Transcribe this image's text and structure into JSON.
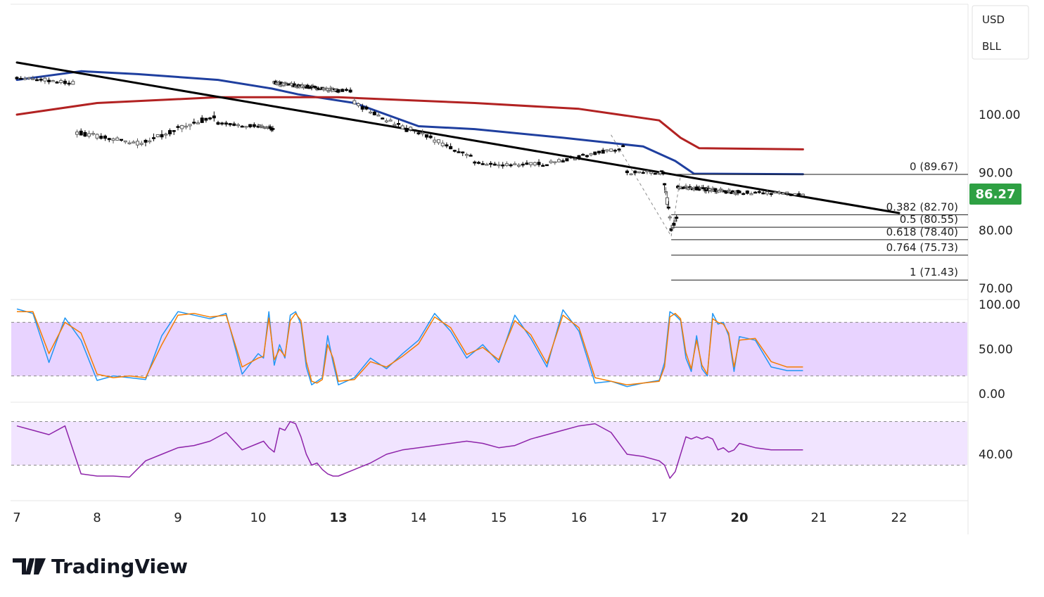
{
  "platform": {
    "brand": "TradingView"
  },
  "currency_box": {
    "line1": "USD",
    "line2": "BLL"
  },
  "chart_data": [
    {
      "type": "candlestick",
      "title": "",
      "xlabel": "",
      "ylabel": "",
      "x_ticks": [
        "7",
        "8",
        "9",
        "10",
        "13",
        "14",
        "15",
        "16",
        "17",
        "20",
        "21",
        "22"
      ],
      "x_ticks_bold": [
        "13",
        "20"
      ],
      "y_ticks": [
        "100.00",
        "90.00",
        "80.00",
        "70.00"
      ],
      "ylim": [
        70,
        110
      ],
      "last_price": {
        "label": "86.27",
        "value": 86.27,
        "color": "#2ea043"
      },
      "grid": false,
      "candles": {
        "bull_color": "#5a5a5a",
        "bear_color": "#000000",
        "x_range": [
          7.0,
          20.8
        ],
        "segments": [
          {
            "from": 7.0,
            "to": 7.7,
            "open": 106.5,
            "close": 105.5,
            "low": 103.0,
            "high": 108.5
          },
          {
            "from": 7.7,
            "to": 7.72,
            "open": 104.0,
            "close": 99.0,
            "low": 91.5,
            "high": 104.5
          },
          {
            "from": 7.72,
            "to": 8.5,
            "open": 97.0,
            "close": 95.0,
            "low": 92.5,
            "high": 99.0
          },
          {
            "from": 8.5,
            "to": 9.5,
            "open": 95.0,
            "close": 100.0,
            "low": 94.0,
            "high": 102.0
          },
          {
            "from": 9.5,
            "to": 10.6,
            "open": 98.5,
            "close": 97.5,
            "low": 96.0,
            "high": 101.0
          },
          {
            "from": 10.6,
            "to": 13.2,
            "open": 105.5,
            "close": 104.0,
            "low": 101.5,
            "high": 106.5
          },
          {
            "from": 13.2,
            "to": 13.9,
            "open": 102.0,
            "close": 97.0,
            "low": 96.0,
            "high": 103.0
          },
          {
            "from": 13.9,
            "to": 14.7,
            "open": 97.5,
            "close": 92.5,
            "low": 91.5,
            "high": 98.0
          },
          {
            "from": 14.7,
            "to": 15.6,
            "open": 91.5,
            "close": 91.5,
            "low": 87.0,
            "high": 93.0
          },
          {
            "from": 15.6,
            "to": 16.6,
            "open": 91.5,
            "close": 94.5,
            "low": 90.5,
            "high": 96.0
          },
          {
            "from": 16.6,
            "to": 17.2,
            "open": 90.0,
            "close": 90.0,
            "low": 89.5,
            "high": 90.5
          },
          {
            "from": 17.2,
            "to": 17.45,
            "open": 88.5,
            "close": 80.0,
            "low": 78.5,
            "high": 90.0
          },
          {
            "from": 17.45,
            "to": 17.7,
            "open": 80.0,
            "close": 83.0,
            "low": 78.5,
            "high": 84.0
          },
          {
            "from": 17.7,
            "to": 20.8,
            "open": 87.5,
            "close": 86.27,
            "low": 85.5,
            "high": 89.5
          }
        ]
      },
      "series": [
        {
          "name": "",
          "color": "#1f3f9f",
          "points": [
            [
              7.0,
              106.0
            ],
            [
              7.8,
              107.5
            ],
            [
              8.5,
              107.0
            ],
            [
              9.5,
              106.0
            ],
            [
              10.5,
              104.5
            ],
            [
              11.5,
              103.5
            ],
            [
              13.2,
              102.0
            ],
            [
              14.0,
              98.0
            ],
            [
              14.7,
              97.5
            ],
            [
              15.8,
              96.0
            ],
            [
              16.8,
              94.5
            ],
            [
              17.6,
              92.0
            ],
            [
              18.3,
              89.8
            ],
            [
              20.8,
              89.7
            ]
          ]
        },
        {
          "name": "",
          "color": "#b22222",
          "points": [
            [
              7.0,
              100.0
            ],
            [
              8.0,
              102.0
            ],
            [
              9.5,
              103.0
            ],
            [
              10.5,
              103.0
            ],
            [
              13.0,
              103.0
            ],
            [
              14.7,
              102.0
            ],
            [
              16.0,
              101.0
            ],
            [
              17.0,
              99.0
            ],
            [
              17.8,
              96.0
            ],
            [
              18.5,
              94.2
            ],
            [
              20.8,
              94.0
            ]
          ]
        },
        {
          "name": "",
          "color": "#000000",
          "points": [
            [
              7.0,
              109.0
            ],
            [
              22.0,
              83.0
            ]
          ]
        }
      ],
      "fib_levels": [
        {
          "label": "0 (89.67)",
          "value": 89.67
        },
        {
          "label": "0.382 (82.70)",
          "value": 82.7
        },
        {
          "label": "0.5 (80.55)",
          "value": 80.55
        },
        {
          "label": "0.618 (78.40)",
          "value": 78.4
        },
        {
          "label": "0.764 (75.73)",
          "value": 75.73
        },
        {
          "label": "1 (71.43)",
          "value": 71.43
        }
      ],
      "fib_x_range": [
        17.45,
        20.8
      ],
      "dashed_guides": [
        {
          "points": [
            [
              16.4,
              96.5
            ],
            [
              17.45,
              79.0
            ]
          ]
        },
        {
          "points": [
            [
              17.45,
              79.0
            ],
            [
              17.8,
              89.5
            ]
          ]
        }
      ]
    },
    {
      "type": "line",
      "title": "",
      "y_ticks": [
        "100.00",
        "50.00",
        "0.00"
      ],
      "ylim": [
        0,
        100
      ],
      "band": [
        20,
        80
      ],
      "band_color": "#e8d3ff",
      "series": [
        {
          "name": "",
          "color": "#2196f3",
          "x": [
            7.0,
            7.2,
            7.4,
            7.6,
            7.8,
            8.0,
            8.2,
            8.4,
            8.6,
            8.8,
            9.0,
            9.2,
            9.4,
            9.6,
            9.8,
            10.0,
            10.2,
            10.4,
            10.6,
            10.8,
            11.0,
            11.2,
            11.4,
            11.6,
            11.8,
            12.0,
            12.2,
            12.4,
            12.6,
            12.8,
            13.0,
            13.2,
            13.4,
            13.6,
            13.8,
            14.0,
            14.2,
            14.4,
            14.6,
            14.8,
            15.0,
            15.2,
            15.4,
            15.6,
            15.8,
            16.0,
            16.2,
            16.4,
            16.6,
            16.8,
            17.0,
            17.2,
            17.4,
            17.6,
            17.8,
            18.0,
            18.2,
            18.4,
            18.6,
            18.8,
            19.0,
            19.2,
            19.4,
            19.6,
            19.8,
            20.0,
            20.2,
            20.4,
            20.6,
            20.8
          ],
          "values": [
            95,
            90,
            35,
            85,
            60,
            15,
            20,
            18,
            16,
            65,
            92,
            88,
            84,
            90,
            22,
            45,
            40,
            92,
            32,
            55,
            40,
            88,
            92,
            78,
            30,
            10,
            14,
            18,
            65,
            35,
            10,
            18,
            40,
            28,
            45,
            60,
            90,
            70,
            40,
            55,
            35,
            88,
            62,
            30,
            94,
            70,
            12,
            14,
            8,
            12,
            15,
            35,
            92,
            88,
            82,
            40,
            25,
            65,
            28,
            20,
            90,
            78,
            80,
            65,
            25,
            64,
            60,
            30,
            26,
            26
          ]
        },
        {
          "name": "",
          "color": "#f57c00",
          "x": [
            7.0,
            7.2,
            7.4,
            7.6,
            7.8,
            8.0,
            8.2,
            8.4,
            8.6,
            8.8,
            9.0,
            9.2,
            9.4,
            9.6,
            9.8,
            10.0,
            10.2,
            10.4,
            10.6,
            10.8,
            11.0,
            11.2,
            11.4,
            11.6,
            11.8,
            12.0,
            12.2,
            12.4,
            12.6,
            12.8,
            13.0,
            13.2,
            13.4,
            13.6,
            13.8,
            14.0,
            14.2,
            14.4,
            14.6,
            14.8,
            15.0,
            15.2,
            15.4,
            15.6,
            15.8,
            16.0,
            16.2,
            16.4,
            16.6,
            16.8,
            17.0,
            17.2,
            17.4,
            17.6,
            17.8,
            18.0,
            18.2,
            18.4,
            18.6,
            18.8,
            19.0,
            19.2,
            19.4,
            19.6,
            19.8,
            20.0,
            20.2,
            20.4,
            20.6,
            20.8
          ],
          "values": [
            92,
            92,
            45,
            80,
            68,
            22,
            18,
            20,
            18,
            55,
            88,
            90,
            86,
            88,
            30,
            40,
            42,
            85,
            38,
            50,
            42,
            82,
            90,
            82,
            36,
            14,
            12,
            16,
            55,
            40,
            14,
            16,
            36,
            30,
            42,
            56,
            86,
            74,
            44,
            52,
            38,
            82,
            66,
            34,
            88,
            74,
            18,
            14,
            10,
            12,
            14,
            30,
            86,
            90,
            84,
            46,
            28,
            60,
            32,
            22,
            84,
            80,
            78,
            68,
            30,
            60,
            62,
            36,
            30,
            30
          ]
        }
      ]
    },
    {
      "type": "line",
      "title": "",
      "y_ticks": [
        "40.00"
      ],
      "ylim": [
        0,
        80
      ],
      "band": [
        30,
        70
      ],
      "band_color": "#f1e4ff",
      "series": [
        {
          "name": "",
          "color": "#8e24aa",
          "x": [
            7.0,
            7.2,
            7.4,
            7.6,
            7.8,
            8.0,
            8.2,
            8.4,
            8.6,
            8.8,
            9.0,
            9.2,
            9.4,
            9.6,
            9.8,
            10.0,
            10.2,
            10.4,
            10.6,
            10.8,
            11.0,
            11.2,
            11.4,
            11.6,
            11.8,
            12.0,
            12.2,
            12.4,
            12.6,
            12.8,
            13.0,
            13.2,
            13.4,
            13.6,
            13.8,
            14.0,
            14.2,
            14.4,
            14.6,
            14.8,
            15.0,
            15.2,
            15.4,
            15.6,
            15.8,
            16.0,
            16.2,
            16.4,
            16.6,
            16.8,
            17.0,
            17.2,
            17.4,
            17.6,
            17.8,
            18.0,
            18.2,
            18.4,
            18.6,
            18.8,
            19.0,
            19.2,
            19.4,
            19.6,
            19.8,
            20.0,
            20.2,
            20.4,
            20.6,
            20.8
          ],
          "values": [
            66,
            62,
            58,
            66,
            22,
            20,
            20,
            19,
            34,
            40,
            46,
            48,
            52,
            60,
            44,
            50,
            52,
            46,
            42,
            64,
            62,
            70,
            68,
            56,
            40,
            30,
            32,
            26,
            22,
            20,
            20,
            26,
            32,
            40,
            44,
            46,
            48,
            50,
            52,
            50,
            46,
            48,
            54,
            58,
            62,
            66,
            68,
            60,
            40,
            38,
            34,
            30,
            18,
            24,
            40,
            56,
            54,
            56,
            54,
            56,
            54,
            44,
            46,
            42,
            44,
            50,
            46,
            44,
            44,
            44
          ]
        }
      ]
    }
  ]
}
